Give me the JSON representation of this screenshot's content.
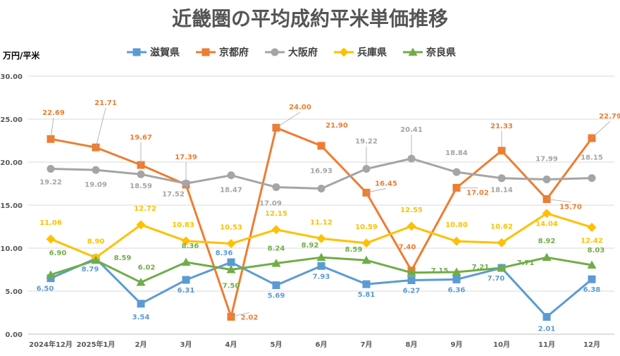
{
  "chart_data": {
    "type": "line",
    "title": "近畿圏の平均成約平米単価推移",
    "ylabel": "万円/平米",
    "xlabel": "",
    "categories": [
      "2024年12月",
      "2025年1月",
      "2月",
      "3月",
      "4月",
      "5月",
      "6月",
      "7月",
      "8月",
      "9月",
      "10月",
      "11月",
      "12月"
    ],
    "ylim": [
      0,
      30
    ],
    "yticks": [
      "0.00",
      "5.00",
      "10.00",
      "15.00",
      "20.00",
      "25.00",
      "30.00"
    ],
    "grid": true,
    "legend_position": "top",
    "series": [
      {
        "name": "滋賀県",
        "color": "#5B9BD5",
        "marker": "square",
        "values": [
          6.5,
          8.79,
          3.54,
          6.31,
          8.36,
          5.69,
          7.93,
          5.81,
          6.27,
          6.36,
          7.7,
          2.01,
          6.38
        ],
        "labels": [
          "6.50",
          "8.79",
          "3.54",
          "6.31",
          "8.36",
          "5.69",
          "7.93",
          "5.81",
          "6.27",
          "6.36",
          "7.70",
          "2.01",
          "6.38"
        ]
      },
      {
        "name": "京都府",
        "color": "#ED7D31",
        "marker": "square",
        "values": [
          22.69,
          21.71,
          19.67,
          17.39,
          2.02,
          24.0,
          21.9,
          16.45,
          7.4,
          17.02,
          21.33,
          15.7,
          22.79
        ],
        "labels": [
          "22.69",
          "21.71",
          "19.67",
          "17.39",
          "2.02",
          "24.00",
          "21.90",
          "16.45",
          "7.40",
          "17.02",
          "21.33",
          "15.70",
          "22.79"
        ]
      },
      {
        "name": "大阪府",
        "color": "#A5A5A5",
        "marker": "circle",
        "values": [
          19.22,
          19.09,
          18.59,
          17.52,
          18.47,
          17.09,
          16.93,
          19.22,
          20.41,
          18.84,
          18.14,
          17.99,
          18.15
        ],
        "labels": [
          "19.22",
          "19.09",
          "18.59",
          "17.52",
          "18.47",
          "17.09",
          "16.93",
          "19.22",
          "20.41",
          "18.84",
          "18.14",
          "17.99",
          "18.15"
        ]
      },
      {
        "name": "兵庫県",
        "color": "#FFC000",
        "marker": "diamond",
        "values": [
          11.06,
          8.9,
          12.72,
          10.83,
          10.53,
          12.15,
          11.12,
          10.59,
          12.55,
          10.8,
          10.62,
          14.04,
          12.42
        ],
        "labels": [
          "11.06",
          "8.90",
          "12.72",
          "10.83",
          "10.53",
          "12.15",
          "11.12",
          "10.59",
          "12.55",
          "10.80",
          "10.62",
          "14.04",
          "12.42"
        ]
      },
      {
        "name": "奈良県",
        "color": "#70AD47",
        "marker": "triangle",
        "values": [
          6.9,
          8.59,
          6.02,
          8.36,
          7.5,
          8.24,
          8.92,
          8.59,
          7.15,
          7.21,
          7.71,
          8.92,
          8.03
        ],
        "labels": [
          "6.90",
          "8.59",
          "6.02",
          "8.36",
          "7.50",
          "8.24",
          "8.92",
          "8.59",
          "7.15",
          "7.21",
          "7.71",
          "8.92",
          "8.03"
        ]
      }
    ]
  }
}
